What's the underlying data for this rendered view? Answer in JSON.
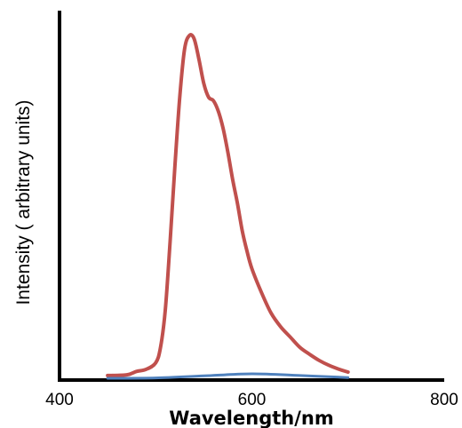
{
  "chart_data": {
    "type": "line",
    "title": "",
    "xlabel": "Wavelength/nm",
    "ylabel": "Intensity ( arbitrary units)",
    "xlim": [
      400,
      800
    ],
    "ylim": [
      0,
      100
    ],
    "xticks": [
      "400",
      "600",
      "800"
    ],
    "y_tick_labels_shown": false,
    "grid": false,
    "legend": "none",
    "series": [
      {
        "color": "#c0504d",
        "x": [
          450,
          470,
          480,
          490,
          500,
          505,
          510,
          515,
          520,
          525,
          530,
          535,
          540,
          545,
          550,
          555,
          560,
          565,
          570,
          575,
          580,
          585,
          590,
          595,
          600,
          610,
          620,
          630,
          640,
          650,
          660,
          670,
          680,
          690,
          700
        ],
        "y": [
          0.8,
          1.0,
          2.0,
          2.6,
          4.5,
          9,
          20,
          40,
          62,
          82,
          96,
          100,
          99,
          93,
          86,
          82,
          81,
          78,
          73,
          66,
          58,
          51,
          43,
          37,
          32,
          25,
          19,
          15,
          12,
          9,
          7,
          5.2,
          3.8,
          2.7,
          1.8
        ]
      },
      {
        "color": "#4f81bd",
        "x": [
          450,
          500,
          550,
          600,
          650,
          700
        ],
        "y": [
          0.0,
          0.1,
          0.7,
          1.3,
          0.8,
          0.2
        ]
      }
    ]
  }
}
